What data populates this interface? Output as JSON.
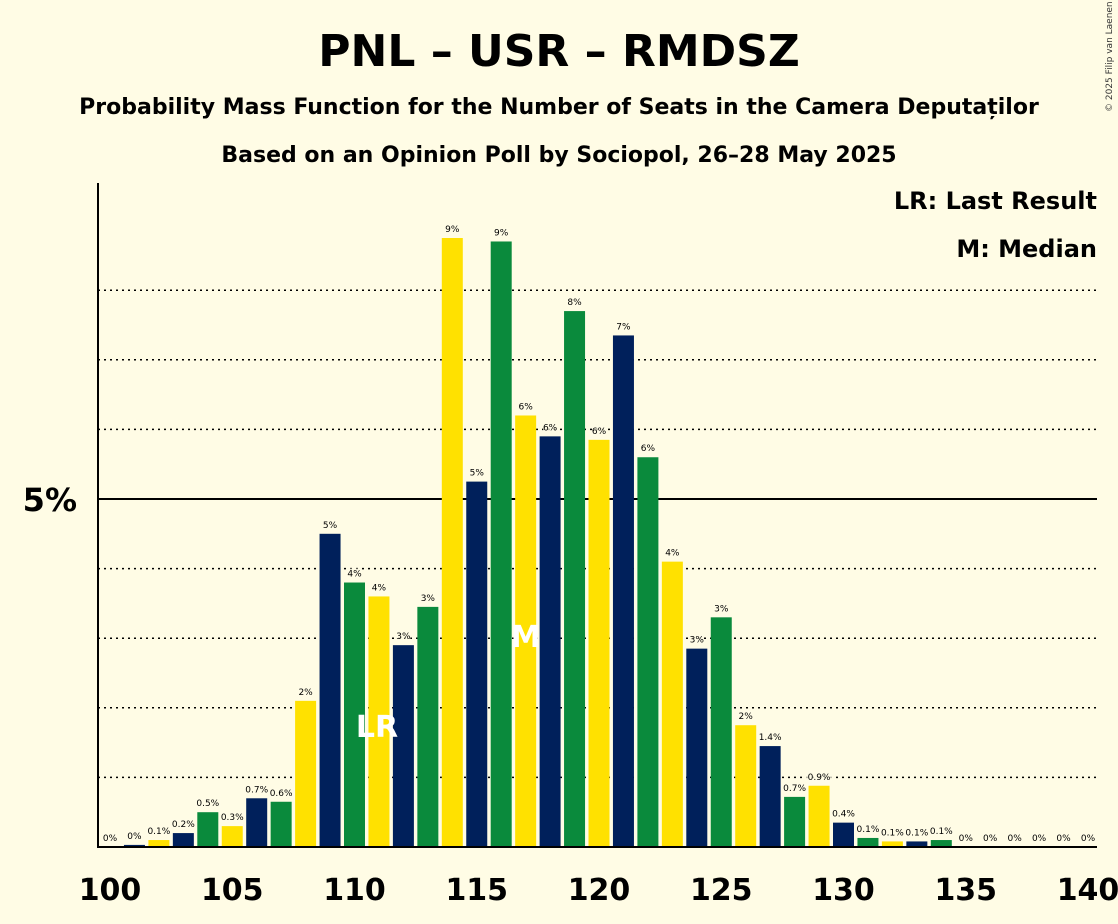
{
  "title": "PNL – USR – RMDSZ",
  "subtitle": "Probability Mass Function for the Number of Seats in the Camera Deputaților",
  "subtitle2": "Based on an Opinion Poll by Sociopol, 26–28 May 2025",
  "copyright": "© 2025 Filip van Laenen",
  "legend": {
    "last_result": "LR: Last Result",
    "median": "M: Median"
  },
  "colors": {
    "background": "#FFFCE5",
    "yellow": "#FFE100",
    "green": "#0A8A3C",
    "navy": "#00205B"
  },
  "chart_data": {
    "type": "bar",
    "title": "PNL – USR – RMDSZ",
    "xlabel": "",
    "ylabel": "",
    "x": [
      100,
      101,
      102,
      103,
      104,
      105,
      106,
      107,
      108,
      109,
      110,
      111,
      112,
      113,
      114,
      115,
      116,
      117,
      118,
      119,
      120,
      121,
      122,
      123,
      124,
      125,
      126,
      127,
      128,
      129,
      130,
      131,
      132,
      133,
      134,
      135,
      136,
      137,
      138,
      139,
      140
    ],
    "values": [
      0.0,
      0.03,
      0.1,
      0.2,
      0.5,
      0.3,
      0.7,
      0.65,
      2.1,
      4.5,
      3.8,
      3.6,
      2.9,
      3.45,
      8.75,
      5.25,
      8.7,
      6.2,
      5.9,
      7.7,
      5.85,
      7.35,
      5.6,
      4.1,
      2.85,
      3.3,
      1.75,
      1.45,
      0.72,
      0.88,
      0.35,
      0.13,
      0.08,
      0.08,
      0.1,
      0.0,
      0.0,
      0.0,
      0.0,
      0.0,
      0.0
    ],
    "labels": [
      "0%",
      "0%",
      "0.1%",
      "0.2%",
      "0.5%",
      "0.3%",
      "0.7%",
      "0.6%",
      "2%",
      "5%",
      "4%",
      "4%",
      "3%",
      "3%",
      "9%",
      "5%",
      "9%",
      "6%",
      "6%",
      "8%",
      "6%",
      "7%",
      "6%",
      "4%",
      "3%",
      "3%",
      "2%",
      "1.4%",
      "0.7%",
      "0.9%",
      "0.4%",
      "0.1%",
      "0.1%",
      "0.1%",
      "0.1%",
      "0%",
      "0%",
      "0%",
      "0%",
      "0%",
      "0%"
    ],
    "colors": [
      "yellow",
      "navy",
      "yellow",
      "navy",
      "green",
      "yellow",
      "navy",
      "green",
      "yellow",
      "navy",
      "green",
      "yellow",
      "navy",
      "green",
      "yellow",
      "navy",
      "green",
      "yellow",
      "navy",
      "green",
      "yellow",
      "navy",
      "green",
      "yellow",
      "navy",
      "green",
      "yellow",
      "navy",
      "green",
      "yellow",
      "navy",
      "green",
      "yellow",
      "navy",
      "green",
      "yellow",
      "navy",
      "green",
      "yellow",
      "navy",
      "green"
    ],
    "xticks": [
      100,
      105,
      110,
      115,
      120,
      125,
      130,
      135,
      140
    ],
    "ytick_label": "5%",
    "ytick_value": 5,
    "gridlines": [
      1,
      2,
      3,
      4,
      6,
      7,
      8
    ],
    "ylim": [
      0,
      9.6
    ],
    "last_result": {
      "x": 111,
      "label": "LR"
    },
    "median": {
      "x": 117,
      "label": "M"
    }
  }
}
